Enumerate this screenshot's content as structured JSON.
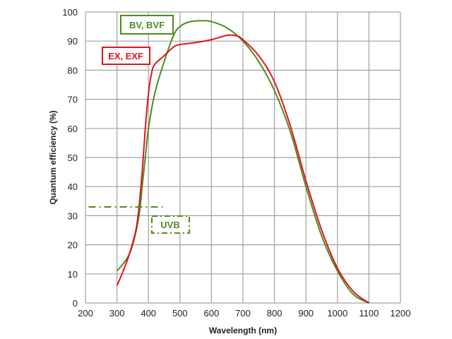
{
  "chart_data": {
    "type": "line",
    "title": "",
    "xlabel": "Wavelength (nm)",
    "ylabel": "Quantum efficiency (%)",
    "xlim": [
      200,
      1200
    ],
    "ylim": [
      0,
      100
    ],
    "xticks": [
      200,
      300,
      400,
      500,
      600,
      700,
      800,
      900,
      1000,
      1100,
      1200
    ],
    "yticks": [
      0,
      10,
      20,
      30,
      40,
      50,
      60,
      70,
      80,
      90,
      100
    ],
    "grid": true,
    "series": [
      {
        "name": "BV, BVF",
        "color": "#4e8a1e",
        "x": [
          300,
          330,
          350,
          370,
          380,
          390,
          400,
          420,
          450,
          480,
          500,
          530,
          570,
          600,
          650,
          700,
          750,
          800,
          850,
          900,
          950,
          1000,
          1050,
          1100
        ],
        "y": [
          11,
          15,
          20,
          30,
          40,
          50,
          60,
          72,
          83,
          92,
          95,
          96.6,
          97,
          96.7,
          94.5,
          90,
          83,
          73,
          59,
          40,
          23,
          11,
          3,
          0
        ]
      },
      {
        "name": "EX, EXF",
        "color": "#e0141e",
        "x": [
          300,
          320,
          340,
          360,
          370,
          380,
          390,
          400,
          410,
          420,
          450,
          480,
          500,
          550,
          600,
          650,
          680,
          700,
          750,
          800,
          850,
          900,
          950,
          1000,
          1050,
          1100
        ],
        "y": [
          6,
          11,
          17,
          25,
          33,
          45,
          60,
          72,
          79,
          82,
          85,
          88,
          88.8,
          89.5,
          90.5,
          92,
          91.8,
          90.5,
          85,
          76,
          61,
          42,
          25,
          12,
          4,
          0
        ]
      }
    ],
    "annotations": [
      {
        "text": "UVB",
        "color": "#4e8a1e",
        "style": "dash-dot",
        "level": 33,
        "x_range": [
          210,
          445
        ]
      }
    ]
  }
}
